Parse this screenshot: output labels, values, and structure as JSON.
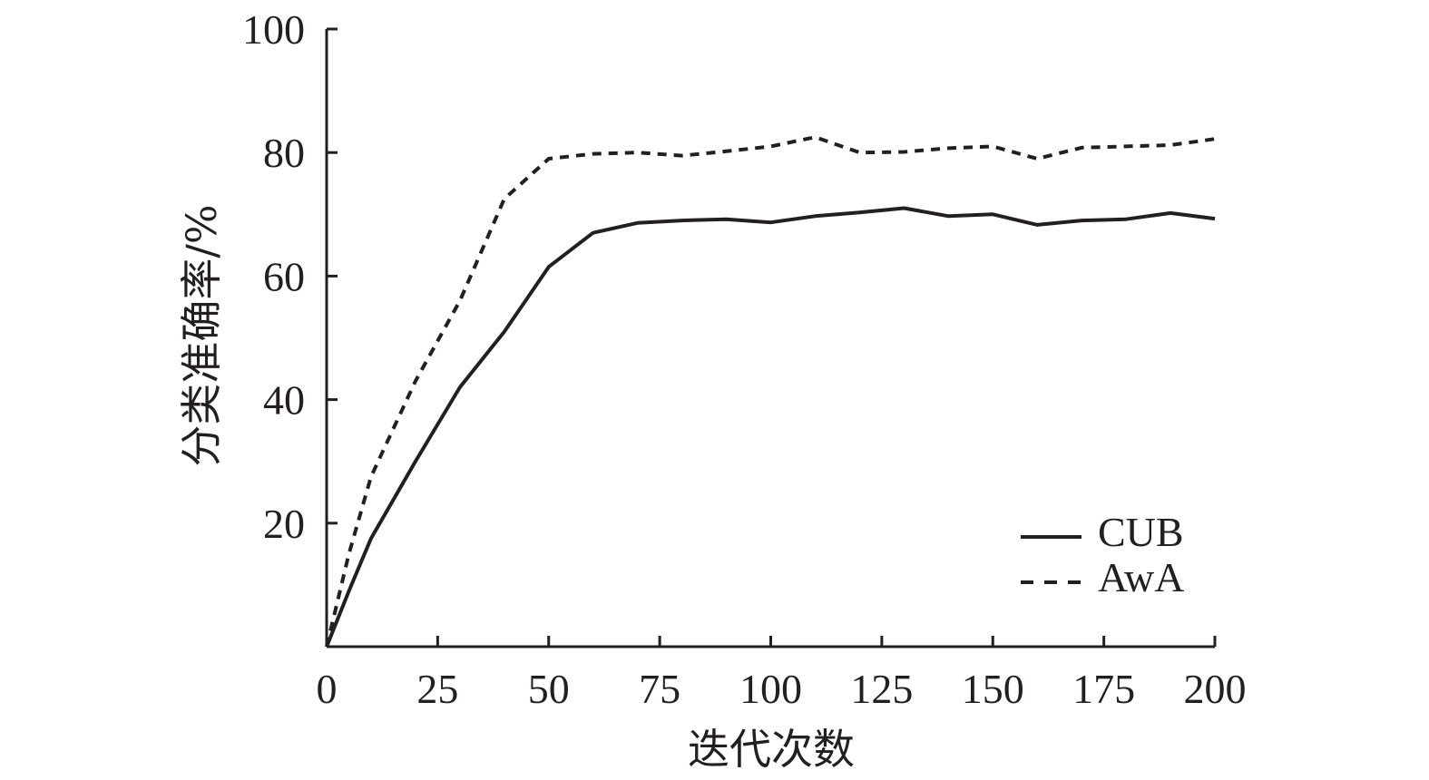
{
  "chart_data": {
    "type": "line",
    "title": "",
    "xlabel": "迭代次数",
    "ylabel": "分类准确率/%",
    "xlim": [
      0,
      200
    ],
    "ylim": [
      0,
      100
    ],
    "xticks": [
      0,
      25,
      50,
      75,
      100,
      125,
      150,
      175,
      200
    ],
    "yticks": [
      20,
      40,
      60,
      80,
      100
    ],
    "grid": false,
    "legend_position": "bottom-right",
    "series": [
      {
        "name": "CUB",
        "style": "solid",
        "color": "#231f20",
        "x": [
          0,
          5,
          10,
          20,
          30,
          40,
          50,
          60,
          70,
          80,
          90,
          100,
          110,
          120,
          130,
          140,
          150,
          160,
          170,
          180,
          190,
          200
        ],
        "y": [
          0,
          9,
          17.5,
          30,
          42,
          51,
          61.5,
          67,
          68.6,
          69,
          69.2,
          68.7,
          69.7,
          70.3,
          71,
          69.7,
          70,
          68.3,
          69,
          69.2,
          70.2,
          69.3
        ]
      },
      {
        "name": "AwA",
        "style": "dashed",
        "color": "#231f20",
        "x": [
          0,
          5,
          10,
          20,
          30,
          40,
          50,
          60,
          70,
          80,
          90,
          100,
          110,
          120,
          130,
          140,
          150,
          160,
          170,
          180,
          190,
          200
        ],
        "y": [
          0,
          15,
          27.5,
          43,
          56,
          72.5,
          79,
          79.8,
          80,
          79.5,
          80.2,
          81,
          82.5,
          80,
          80.1,
          80.7,
          81,
          79,
          80.8,
          81,
          81.2,
          82.2
        ]
      }
    ]
  }
}
